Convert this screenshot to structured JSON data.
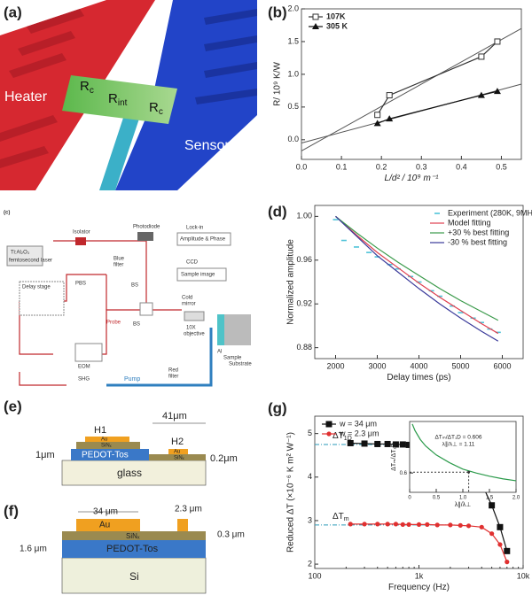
{
  "panel_labels": [
    "(a)",
    "(b)",
    "(c)",
    "(d)",
    "(e)",
    "(f)",
    "(g)"
  ],
  "diagram_a": {
    "heater": "Heater",
    "sensor": "Sensor",
    "resistances": [
      {
        "symbol": "R",
        "sub": "c"
      },
      {
        "symbol": "R",
        "sub": "int"
      },
      {
        "symbol": "R",
        "sub": "c"
      }
    ]
  },
  "diagram_c": {
    "labels": [
      "Isolator",
      "Ti:Al₂O₃",
      "femtosecond laser",
      "Photodiode",
      "Lock-in",
      "Amplitude & Phase",
      "Blue",
      "filter",
      "CCD",
      "BS",
      "Sample image",
      "Delay stage",
      "PBS",
      "Cold",
      "mirror",
      "Probe",
      "BS",
      "10X",
      "objective",
      "Al",
      "Sample",
      "Substrate",
      "EOM",
      "SHG",
      "Pump",
      "Red",
      "filter"
    ]
  },
  "diagram_e": {
    "h1": "H1",
    "h2": "H2",
    "width": "41μm",
    "au": [
      "Au",
      "Au"
    ],
    "sinx": [
      "SiNₓ",
      "SiNₓ"
    ],
    "left_thickness": "1μm",
    "right_thickness": "0.2μm",
    "pedot": "PEDOT-Tos",
    "substrate": "glass"
  },
  "diagram_f": {
    "width_large": "34 μm",
    "width_small": "2.3 μm",
    "au": "Au",
    "sinx": "SiNₓ",
    "sinx_thickness": "0.3 μm",
    "total_thickness": "1.6 μm",
    "pedot": "PEDOT-Tos",
    "substrate": "Si"
  },
  "chart_data": [
    {
      "type": "scatter",
      "xlabel": "L/d² / 10⁹ m⁻¹",
      "ylabel": "R/ 10⁹ K/W",
      "xlim": [
        0,
        0.55
      ],
      "xticks": [
        {
          "value": 0,
          "label": "0.0"
        },
        0.1,
        0.2,
        0.3,
        0.4,
        0.5
      ],
      "ylim": [
        -0.3,
        2.0
      ],
      "yticks": [
        {
          "value": 0,
          "label": "0.0"
        },
        0.5,
        {
          "value": 1,
          "label": "1.0"
        },
        1.5,
        {
          "value": 2,
          "label": "2.0"
        }
      ],
      "legend": "upper left",
      "series": [
        {
          "name": "107K",
          "marker": "open-square",
          "color": "#333333",
          "x": [
            0.19,
            0.22,
            0.45,
            0.49
          ],
          "values": [
            0.38,
            0.68,
            1.27,
            1.5
          ]
        },
        {
          "name": "305 K",
          "marker": "triangle",
          "color": "#111111",
          "x": [
            0.19,
            0.22,
            0.45,
            0.49
          ],
          "values": [
            0.25,
            0.32,
            0.68,
            0.74
          ]
        }
      ],
      "fit_lines": [
        {
          "x": [
            0,
            0.55
          ],
          "values": [
            -0.17,
            1.7
          ]
        },
        {
          "x": [
            0,
            0.55
          ],
          "values": [
            -0.05,
            0.85
          ]
        }
      ]
    },
    {
      "type": "line",
      "xlabel": "Delay times (ps)",
      "ylabel": "Normalized amplitude",
      "xlim": [
        1500,
        6500
      ],
      "xticks": [
        2000,
        3000,
        4000,
        5000,
        6000
      ],
      "ylim": [
        0.87,
        1.01
      ],
      "yticks": [
        0.88,
        0.92,
        0.96,
        {
          "value": 1,
          "label": "1.00"
        }
      ],
      "legend": "upper right",
      "series": [
        {
          "name": "Experiment (280K, 9MHz)",
          "marker": "dots",
          "line": false,
          "color": "#4fc3d8",
          "x": [
            2000,
            2200,
            2500,
            2800,
            3000,
            3300,
            3500,
            3800,
            4000,
            4300,
            4500,
            4800,
            5000,
            5300,
            5500,
            5700,
            5900
          ],
          "values": [
            0.997,
            0.978,
            0.972,
            0.967,
            0.963,
            0.956,
            0.952,
            0.945,
            0.94,
            0.932,
            0.927,
            0.918,
            0.912,
            0.907,
            0.903,
            0.897,
            0.894
          ]
        },
        {
          "name": "Model fitting",
          "marker": "none",
          "line": true,
          "color": "#e04050",
          "x": [
            2000,
            2500,
            3000,
            3500,
            4000,
            4500,
            5000,
            5500,
            5900
          ],
          "values": [
            1.0,
            0.983,
            0.967,
            0.953,
            0.939,
            0.926,
            0.914,
            0.902,
            0.893
          ]
        },
        {
          "name": "+30 % best fitting",
          "marker": "none",
          "line": true,
          "color": "#3a9a4a",
          "x": [
            2000,
            2500,
            3000,
            3500,
            4000,
            4500,
            5000,
            5500,
            5900
          ],
          "values": [
            1.0,
            0.985,
            0.971,
            0.958,
            0.946,
            0.934,
            0.923,
            0.913,
            0.905
          ]
        },
        {
          "name": "-30 % best fitting",
          "marker": "none",
          "line": true,
          "color": "#3a3a9a",
          "x": [
            2000,
            2500,
            3000,
            3500,
            4000,
            4500,
            5000,
            5500,
            5900
          ],
          "values": [
            1.0,
            0.982,
            0.964,
            0.949,
            0.934,
            0.92,
            0.907,
            0.895,
            0.886
          ]
        }
      ]
    },
    {
      "type": "line",
      "xlabel": "Frequency (Hz)",
      "ylabel": "Reduced ΔT (×10⁻⁶ K m² W⁻¹)",
      "xscale": "log",
      "xlim": [
        100,
        10000
      ],
      "xticks": [
        100,
        {
          "value": 1000,
          "label": "1k"
        },
        {
          "value": 10000,
          "label": "10k"
        }
      ],
      "ylim": [
        1.9,
        5.4
      ],
      "yticks": [
        2,
        3,
        4,
        5
      ],
      "legend": "upper left",
      "series": [
        {
          "name": "w = 34 μm",
          "marker": "square",
          "line": true,
          "color": "#111111",
          "x": [
            220,
            300,
            400,
            500,
            600,
            700,
            800,
            1000,
            1200,
            1500,
            2000,
            2500,
            3000,
            4000,
            5000,
            6000,
            7000
          ],
          "values": [
            4.78,
            4.77,
            4.76,
            4.76,
            4.75,
            4.75,
            4.74,
            4.73,
            4.72,
            4.7,
            4.6,
            4.45,
            4.25,
            3.85,
            3.35,
            2.85,
            2.3
          ]
        },
        {
          "name": "w = 2.3 μm",
          "marker": "circle",
          "line": true,
          "color": "#e03030",
          "x": [
            220,
            300,
            400,
            500,
            600,
            700,
            800,
            1000,
            1200,
            1500,
            2000,
            2500,
            3000,
            4000,
            5000,
            6000,
            7000
          ],
          "values": [
            2.92,
            2.92,
            2.92,
            2.92,
            2.92,
            2.91,
            2.91,
            2.91,
            2.91,
            2.9,
            2.9,
            2.89,
            2.88,
            2.85,
            2.7,
            2.45,
            2.05
          ]
        }
      ],
      "levels": [
        {
          "value": 4.75,
          "label": {
            "text": "ΔT",
            "sub": "1D"
          }
        },
        {
          "value": 2.9,
          "label": {
            "text": "ΔT",
            "sub": "m"
          }
        }
      ]
    },
    {
      "type": "line",
      "inset": true,
      "xlabel": "λ∥/λ⊥",
      "ylabel": "ΔTₘ/ΔT₁D",
      "xlim": [
        0,
        2
      ],
      "xticks": [
        0,
        0.5,
        {
          "value": 1,
          "label": "1.0"
        },
        1.5,
        {
          "value": 2,
          "label": "2.0"
        }
      ],
      "ylim": [
        0.45,
        1.0
      ],
      "yticks": [
        0.6
      ],
      "series": [
        {
          "marker": "none",
          "line": true,
          "color": "#2a9a4a",
          "x": [
            0.05,
            0.1,
            0.2,
            0.3,
            0.5,
            0.75,
            1.0,
            1.25,
            1.5,
            1.75,
            2.0
          ],
          "values": [
            0.98,
            0.93,
            0.86,
            0.81,
            0.74,
            0.68,
            0.63,
            0.6,
            0.575,
            0.555,
            0.54
          ]
        }
      ],
      "marker_point": {
        "x": 1.11,
        "y": 0.606
      },
      "annotations": [
        "ΔTₘ/ΔT₁D = 0.606",
        "λ∥/λ⊥ = 1.11"
      ]
    }
  ]
}
